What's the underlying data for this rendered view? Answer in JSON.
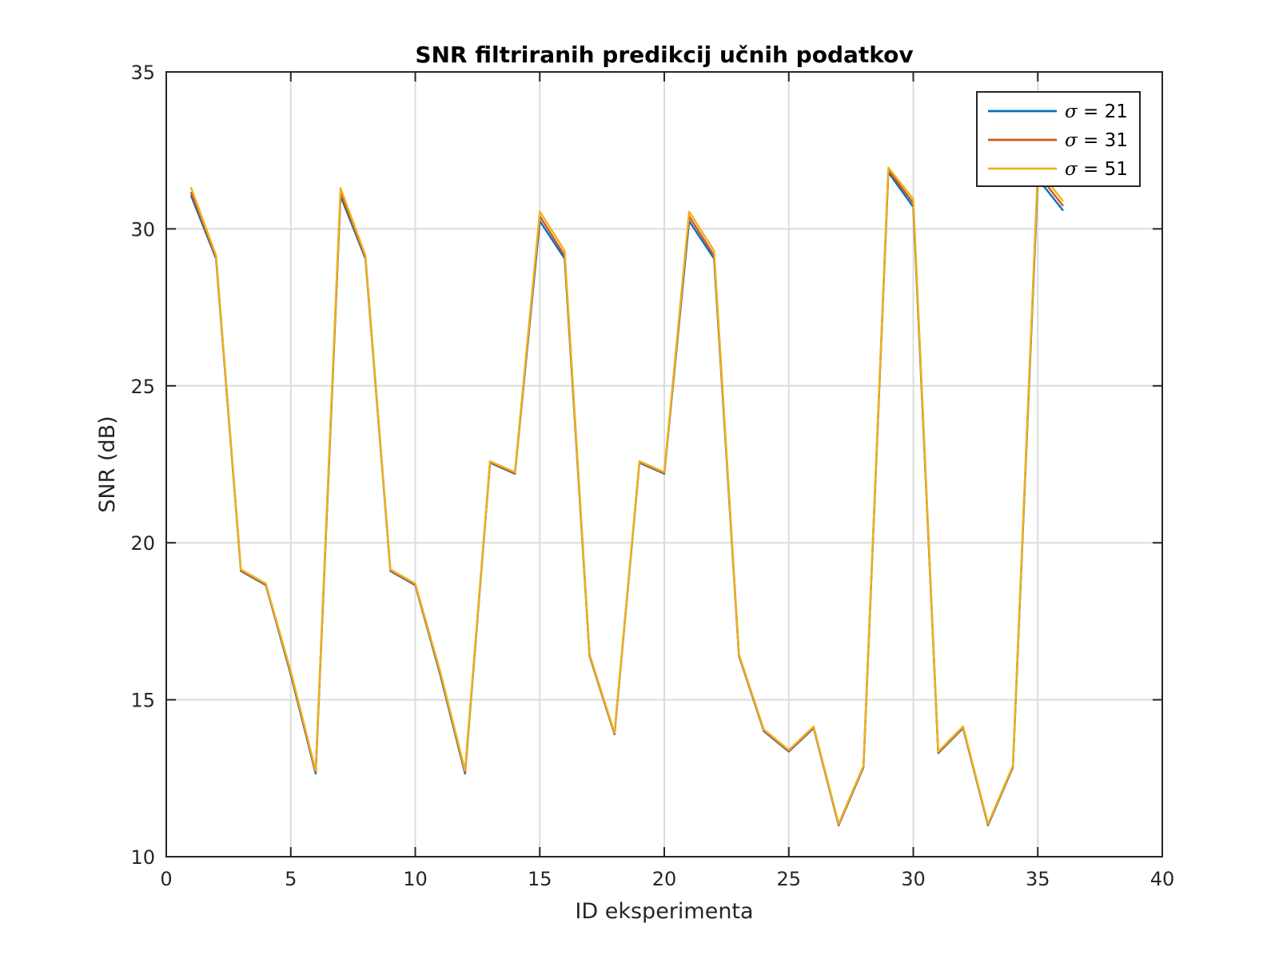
{
  "chart_data": {
    "type": "line",
    "title": "SNR filtriranih predikcij učnih podatkov",
    "xlabel": "ID eksperimenta",
    "ylabel": "SNR (dB)",
    "xlim": [
      0,
      40
    ],
    "ylim": [
      10,
      35
    ],
    "xticks": [
      0,
      5,
      10,
      15,
      20,
      25,
      30,
      35,
      40
    ],
    "yticks": [
      10,
      15,
      20,
      25,
      30,
      35
    ],
    "grid": true,
    "legend_position": "top-right",
    "legend_symbol": "σ",
    "legend_operator": "=",
    "x": [
      1,
      2,
      3,
      4,
      5,
      6,
      7,
      8,
      9,
      10,
      11,
      12,
      13,
      14,
      15,
      16,
      17,
      18,
      19,
      20,
      21,
      22,
      23,
      24,
      25,
      26,
      27,
      28,
      29,
      30,
      31,
      32,
      33,
      34,
      35,
      36
    ],
    "series": [
      {
        "name": "21",
        "color": "#0072BD",
        "values": [
          31.05,
          29.05,
          19.1,
          18.65,
          15.8,
          12.65,
          31.05,
          29.05,
          19.1,
          18.65,
          15.8,
          12.65,
          22.55,
          22.2,
          30.25,
          29.05,
          16.4,
          13.9,
          22.55,
          22.2,
          30.25,
          29.05,
          16.4,
          14.0,
          13.35,
          14.1,
          11.0,
          12.85,
          31.8,
          30.7,
          13.3,
          14.1,
          11.0,
          12.85,
          31.6,
          30.6
        ]
      },
      {
        "name": "31",
        "color": "#D95319",
        "values": [
          31.15,
          29.1,
          19.12,
          18.67,
          15.85,
          12.7,
          31.15,
          29.1,
          19.12,
          18.67,
          15.85,
          12.7,
          22.57,
          22.22,
          30.4,
          29.15,
          16.42,
          13.92,
          22.57,
          22.22,
          30.4,
          29.15,
          16.42,
          14.02,
          13.37,
          14.12,
          11.02,
          12.87,
          31.88,
          30.82,
          13.32,
          14.12,
          11.02,
          12.87,
          31.75,
          30.75
        ]
      },
      {
        "name": "51",
        "color": "#EDB120",
        "values": [
          31.3,
          29.15,
          19.15,
          18.7,
          15.9,
          12.75,
          31.3,
          29.15,
          19.15,
          18.7,
          15.9,
          12.75,
          22.6,
          22.25,
          30.55,
          29.3,
          16.45,
          13.95,
          22.6,
          22.25,
          30.55,
          29.3,
          16.45,
          14.05,
          13.4,
          14.15,
          11.05,
          12.9,
          31.95,
          30.95,
          13.35,
          14.15,
          11.05,
          12.9,
          31.9,
          30.9
        ]
      }
    ]
  }
}
